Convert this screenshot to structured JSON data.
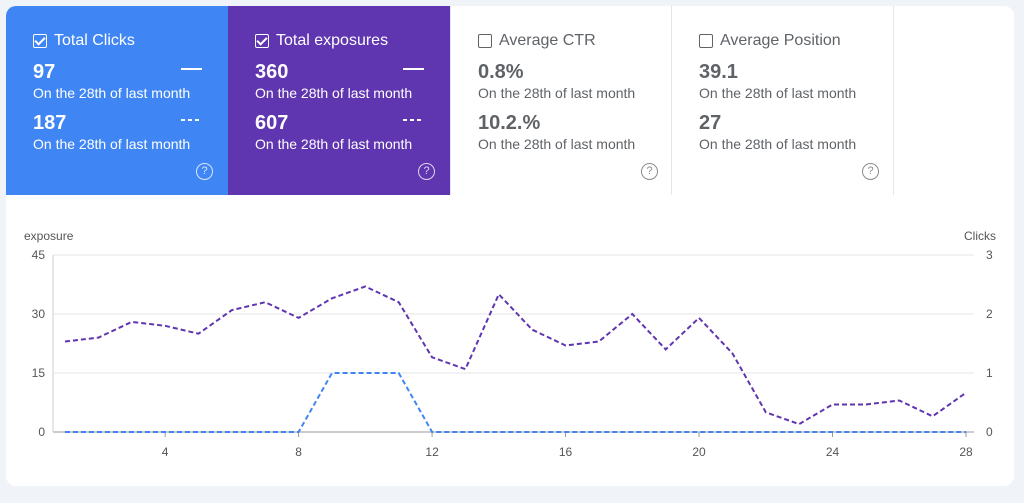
{
  "metrics": [
    {
      "label": "Total Clicks",
      "checked": true,
      "value1": "97",
      "sub1": "On the 28th of last month",
      "value2": "187",
      "sub2": "On the 28th of last month",
      "help": "?"
    },
    {
      "label": "Total exposures",
      "checked": true,
      "value1": "360",
      "sub1": "On the 28th of last month",
      "value2": "607",
      "sub2": "On the 28th of last month",
      "help": "?"
    },
    {
      "label": "Average CTR",
      "checked": false,
      "value1": "0.8%",
      "sub1": "On the 28th of last month",
      "value2": "10.2.%",
      "sub2": "On the 28th of last month",
      "help": "?"
    },
    {
      "label": "Average Position",
      "checked": false,
      "value1": "39.1",
      "sub1": "On the 28th of last month",
      "value2": "27",
      "sub2": "On the 28th of last month",
      "help": "?"
    }
  ],
  "colors": {
    "clicks": "#3f86f4",
    "exposures": "#5f35b0"
  },
  "chart_data": {
    "type": "line",
    "ylabel_left": "exposure",
    "ylabel_right": "Clicks",
    "x": [
      1,
      2,
      3,
      4,
      5,
      6,
      7,
      8,
      9,
      10,
      11,
      12,
      13,
      14,
      15,
      16,
      17,
      18,
      19,
      20,
      21,
      22,
      23,
      24,
      25,
      26,
      27,
      28
    ],
    "x_ticks": [
      "4",
      "8",
      "12",
      "16",
      "20",
      "24",
      "28"
    ],
    "y_left_ticks": [
      "0",
      "15",
      "30",
      "45"
    ],
    "y_right_ticks": [
      "0",
      "1",
      "2",
      "3"
    ],
    "ylim_left": [
      0,
      45
    ],
    "ylim_right": [
      0,
      3
    ],
    "grid": true,
    "series": [
      {
        "axis": "left",
        "style": "dashed",
        "color": "#5f35b0",
        "values": [
          23,
          24,
          28,
          27,
          25,
          31,
          33,
          29,
          34,
          37,
          33,
          19,
          16,
          35,
          26,
          22,
          23,
          30,
          21,
          29,
          20,
          5,
          2,
          7,
          7,
          8,
          4,
          10
        ]
      },
      {
        "axis": "right",
        "style": "dashed",
        "color": "#3f86f4",
        "values": [
          0,
          0,
          0,
          0,
          0,
          0,
          0,
          0,
          1,
          1,
          1,
          0,
          0,
          0,
          0,
          0,
          0,
          0,
          0,
          0,
          0,
          0,
          0,
          0,
          0,
          0,
          0,
          0
        ]
      }
    ]
  }
}
